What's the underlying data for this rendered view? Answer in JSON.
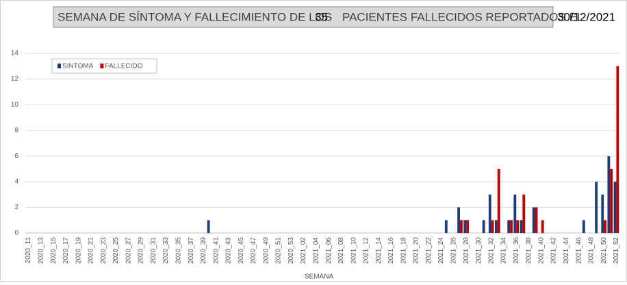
{
  "chart_data": {
    "type": "bar",
    "title": {
      "prefix": "SEMANA DE SÍNTOMA Y FALLECIMIENTO DE LOS",
      "count": "35",
      "middle": "PACIENTES FALLECIDOS REPORTADOS EL",
      "date": "30/12/2021"
    },
    "x_label": "SEMANA",
    "categories": [
      "2020_11",
      null,
      "2020_13",
      null,
      "2020_15",
      null,
      "2020_17",
      null,
      "2020_19",
      null,
      "2020_21",
      null,
      "2020_23",
      null,
      "2020_25",
      null,
      "2020_27",
      null,
      "2020_29",
      null,
      "2020_31",
      null,
      "2020_33",
      null,
      "2020_35",
      null,
      "2020_37",
      null,
      "2020_39",
      null,
      "2020_41",
      null,
      "2020_43",
      null,
      "2020_45",
      null,
      "2020_47",
      null,
      "2020_49",
      null,
      "2020_51",
      null,
      "2020_53",
      null,
      "2021_02",
      null,
      "2021_04",
      null,
      "2021_06",
      null,
      "2021_08",
      null,
      "2021_10",
      null,
      "2021_12",
      null,
      "2021_14",
      null,
      "2021_16",
      null,
      "2021_18",
      null,
      "2021_20",
      null,
      "2021_22",
      null,
      "2021_24",
      null,
      "2021_26",
      null,
      "2021_28",
      null,
      "2021_30",
      null,
      "2021_32",
      null,
      "2021_34",
      null,
      "2021_36",
      null,
      "2021_38",
      null,
      "2021_40",
      null,
      "2021_42",
      null,
      "2021_44",
      null,
      "2021_46",
      null,
      "2021_48",
      null,
      "2021_50",
      null,
      "2021_52"
    ],
    "series": [
      {
        "name": "SINTOMA",
        "color": "#1f3c7a",
        "values": [
          0,
          0,
          0,
          0,
          0,
          0,
          0,
          0,
          0,
          0,
          0,
          0,
          0,
          0,
          0,
          0,
          0,
          0,
          0,
          0,
          0,
          0,
          0,
          0,
          0,
          0,
          0,
          0,
          0,
          1,
          0,
          0,
          0,
          0,
          0,
          0,
          0,
          0,
          0,
          0,
          0,
          0,
          0,
          0,
          0,
          0,
          0,
          0,
          0,
          0,
          0,
          0,
          0,
          0,
          0,
          0,
          0,
          0,
          0,
          0,
          0,
          0,
          0,
          0,
          0,
          0,
          0,
          1,
          0,
          2,
          1,
          0,
          0,
          1,
          3,
          1,
          0,
          1,
          3,
          1,
          0,
          2,
          0,
          0,
          0,
          0,
          0,
          0,
          0,
          1,
          0,
          4,
          3,
          6,
          4
        ]
      },
      {
        "name": "FALLECIDO",
        "color": "#c00000",
        "values": [
          0,
          0,
          0,
          0,
          0,
          0,
          0,
          0,
          0,
          0,
          0,
          0,
          0,
          0,
          0,
          0,
          0,
          0,
          0,
          0,
          0,
          0,
          0,
          0,
          0,
          0,
          0,
          0,
          0,
          0,
          0,
          0,
          0,
          0,
          0,
          0,
          0,
          0,
          0,
          0,
          0,
          0,
          0,
          0,
          0,
          0,
          0,
          0,
          0,
          0,
          0,
          0,
          0,
          0,
          0,
          0,
          0,
          0,
          0,
          0,
          0,
          0,
          0,
          0,
          0,
          0,
          0,
          0,
          0,
          1,
          1,
          0,
          0,
          0,
          1,
          5,
          0,
          1,
          1,
          3,
          0,
          2,
          1,
          0,
          0,
          0,
          0,
          0,
          0,
          0,
          0,
          0,
          1,
          5,
          13
        ]
      }
    ],
    "ylim": [
      0,
      14
    ],
    "yticks": [
      0,
      2,
      4,
      6,
      8,
      10,
      12,
      14
    ],
    "grid": true,
    "legend": "top-left"
  }
}
